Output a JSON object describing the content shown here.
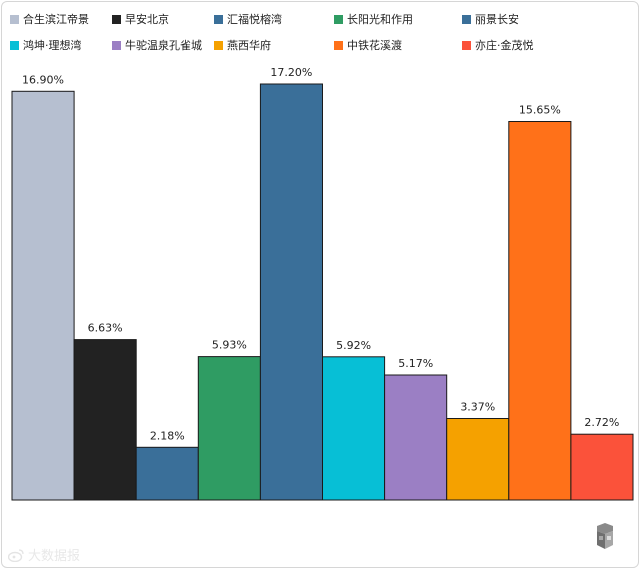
{
  "chart_data": {
    "type": "bar",
    "categories": [
      "合生滨江帝景",
      "早安北京",
      "汇福悦榕湾",
      "长阳光和作用",
      "丽景长安",
      "鸿坤·理想湾",
      "牛驼温泉孔雀城",
      "燕西华府",
      "中铁花溪渡",
      "亦庄·金茂悦"
    ],
    "values": [
      16.9,
      6.63,
      2.18,
      5.93,
      17.2,
      5.92,
      5.17,
      3.37,
      15.65,
      2.72
    ],
    "value_labels": [
      "16.90%",
      "6.63%",
      "2.18%",
      "5.93%",
      "17.20%",
      "5.92%",
      "5.17%",
      "3.37%",
      "15.65%",
      "2.72%"
    ],
    "colors": [
      "#b6bfd0",
      "#222222",
      "#3a6f99",
      "#2f9c63",
      "#3a6f99",
      "#07bfd6",
      "#9b7fc4",
      "#f5a100",
      "#ff7119",
      "#fb523a"
    ],
    "title": "",
    "xlabel": "",
    "ylabel": "",
    "ylim": [
      0,
      17.2
    ],
    "grid": false,
    "legend_position": "top"
  },
  "watermark": {
    "text": "大数据报",
    "icon": "weibo-icon"
  },
  "logo_icon": "box-logo-icon"
}
